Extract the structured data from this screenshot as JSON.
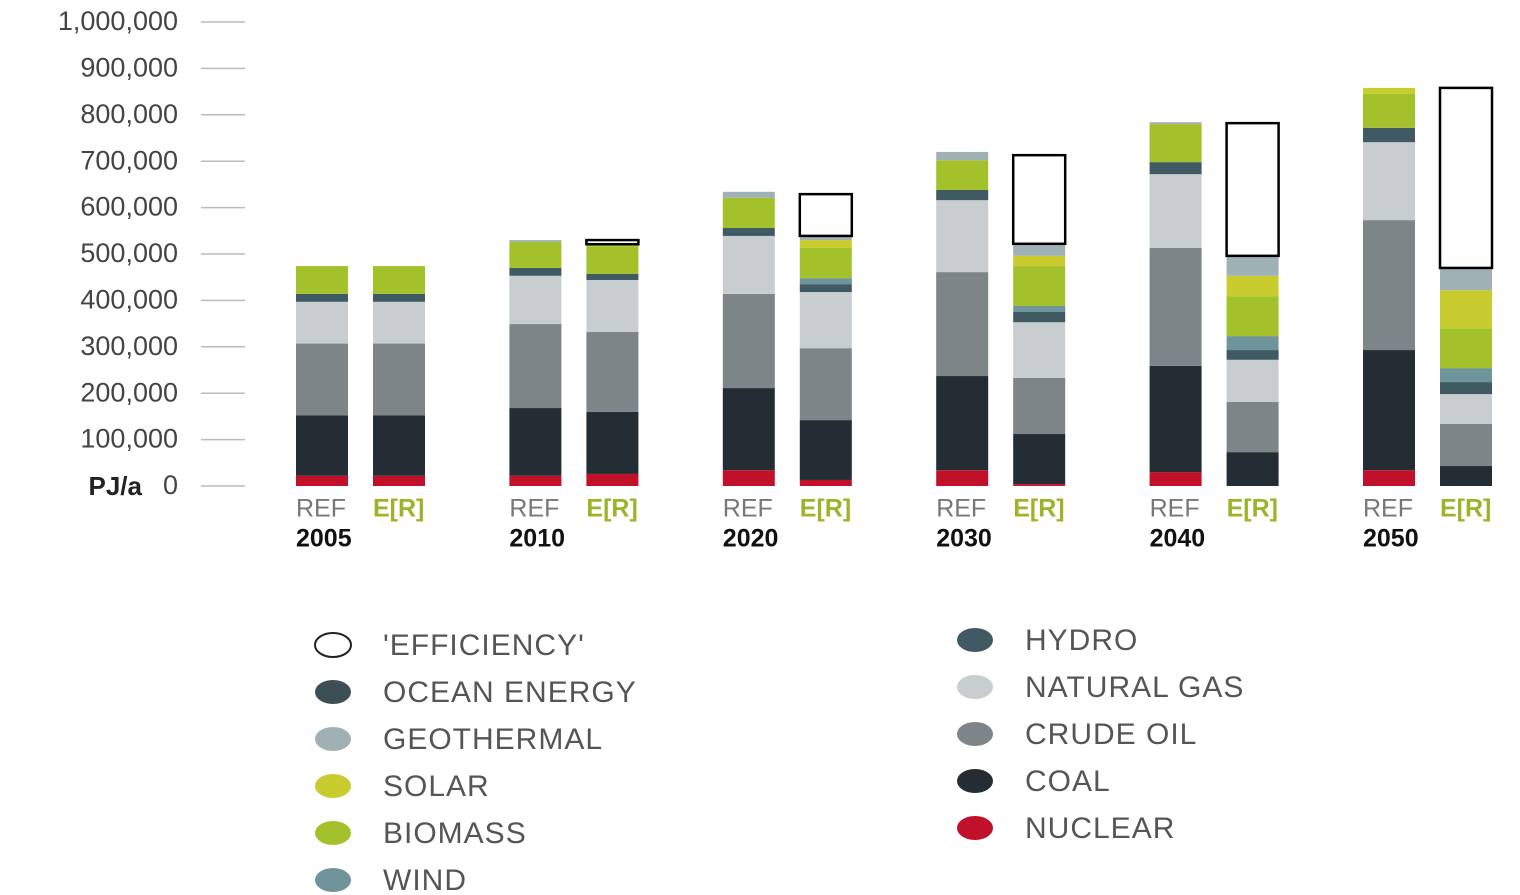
{
  "chart_data": {
    "type": "stacked_bar",
    "y_label": "PJ/a",
    "groups": [
      "2005",
      "2010",
      "2020",
      "2030",
      "2040",
      "2050"
    ],
    "scenarios": [
      "REF",
      "E[R]"
    ],
    "ylim": [
      0,
      1000000
    ],
    "yticks": [
      0,
      {
        "value": 100000,
        "label": "100,000"
      },
      {
        "value": 200000,
        "label": "200,000"
      },
      {
        "value": 300000,
        "label": "300,000"
      },
      {
        "value": 400000,
        "label": "400,000"
      },
      {
        "value": 500000,
        "label": "500,000"
      },
      {
        "value": 600000,
        "label": "600,000"
      },
      {
        "value": 700000,
        "label": "700,000"
      },
      {
        "value": 800000,
        "label": "800,000"
      },
      {
        "value": 900000,
        "label": "900,000"
      },
      {
        "value": 1000000,
        "label": "1,000,000"
      }
    ],
    "series": [
      {
        "name": "'EFFICIENCY'",
        "color": "#ffffff",
        "values": [
          0,
          0,
          0,
          9000,
          0,
          90000,
          0,
          191000,
          0,
          286000,
          0,
          388000
        ]
      },
      {
        "name": "OCEAN ENERGY",
        "color": "#3d4f56",
        "values": [
          0,
          0,
          0,
          0,
          0,
          0,
          0,
          0,
          0,
          0,
          0,
          0
        ]
      },
      {
        "name": "GEOTHERMAL",
        "color": "#9fb1b4",
        "values": [
          0,
          0,
          4000,
          0,
          13000,
          9000,
          18000,
          26000,
          4000,
          43000,
          0,
          48000
        ]
      },
      {
        "name": "SOLAR",
        "color": "#c8cc2e",
        "values": [
          0,
          0,
          0,
          4000,
          0,
          17000,
          0,
          22000,
          0,
          44000,
          13000,
          82000
        ]
      },
      {
        "name": "BIOMASS",
        "color": "#a3c12a",
        "values": [
          60000,
          60000,
          56000,
          60000,
          65000,
          65000,
          64000,
          86000,
          82000,
          86000,
          73000,
          86000
        ]
      },
      {
        "name": "WIND",
        "color": "#6f9499",
        "values": [
          0,
          0,
          0,
          0,
          0,
          13000,
          0,
          13000,
          0,
          30000,
          0,
          30000
        ]
      },
      {
        "name": "HYDRO",
        "color": "#3f5a63",
        "values": [
          17000,
          17000,
          17000,
          13000,
          17000,
          17000,
          22000,
          22000,
          26000,
          21000,
          31000,
          26000
        ]
      },
      {
        "name": "NATURAL GAS",
        "color": "#c8cdd0",
        "values": [
          90000,
          90000,
          104000,
          112000,
          125000,
          121000,
          155000,
          120000,
          159000,
          91000,
          168000,
          64000
        ]
      },
      {
        "name": "CRUDE OIL",
        "color": "#7d8589",
        "values": [
          155000,
          155000,
          181000,
          172000,
          203000,
          155000,
          224000,
          121000,
          254000,
          108000,
          280000,
          91000
        ]
      },
      {
        "name": "COAL",
        "color": "#232d33",
        "values": [
          130000,
          130000,
          146000,
          134000,
          177000,
          129000,
          203000,
          108000,
          229000,
          73000,
          259000,
          43000
        ]
      },
      {
        "name": "NUCLEAR",
        "color": "#c0102a",
        "values": [
          22000,
          22000,
          22000,
          26000,
          34000,
          13000,
          34000,
          4000,
          30000,
          0,
          34000,
          0
        ]
      }
    ]
  }
}
